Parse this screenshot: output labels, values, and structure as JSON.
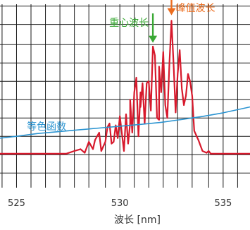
{
  "chart_data": {
    "type": "line",
    "title": "",
    "xlabel": "波长 [nm]",
    "ylabel": "",
    "xlim": [
      524.2,
      536.3
    ],
    "ylim": [
      0,
      1
    ],
    "grid": true,
    "x_gridlines": [
      524.3,
      525,
      525.7,
      526.4,
      527.1,
      527.8,
      528.5,
      529.3,
      530,
      530.7,
      531.4,
      532.1,
      532.8,
      533.5,
      534.3,
      535,
      535.7
    ],
    "y_gridlines": [
      0.08,
      0.18,
      0.28,
      0.38,
      0.48,
      0.58,
      0.68,
      0.78,
      0.89,
      0.99
    ],
    "x_ticks": [
      525,
      530,
      535
    ],
    "x_tick_labels": [
      "525",
      "530",
      "535"
    ],
    "series": [
      {
        "name": "",
        "color": "#d7192c",
        "points": [
          [
            524.2,
            0.185
          ],
          [
            527.4,
            0.185
          ],
          [
            527.8,
            0.2
          ],
          [
            528.1,
            0.21
          ],
          [
            528.3,
            0.19
          ],
          [
            528.5,
            0.25
          ],
          [
            528.7,
            0.21
          ],
          [
            528.8,
            0.26
          ],
          [
            529.0,
            0.3
          ],
          [
            529.1,
            0.2
          ],
          [
            529.3,
            0.25
          ],
          [
            529.4,
            0.33
          ],
          [
            529.5,
            0.35
          ],
          [
            529.6,
            0.24
          ],
          [
            529.7,
            0.25
          ],
          [
            529.8,
            0.34
          ],
          [
            529.9,
            0.27
          ],
          [
            530.0,
            0.39
          ],
          [
            530.2,
            0.2
          ],
          [
            530.3,
            0.4
          ],
          [
            530.4,
            0.24
          ],
          [
            530.5,
            0.35
          ],
          [
            530.5,
            0.48
          ],
          [
            530.6,
            0.3
          ],
          [
            530.7,
            0.52
          ],
          [
            530.8,
            0.6
          ],
          [
            530.9,
            0.28
          ],
          [
            531.0,
            0.52
          ],
          [
            531.0,
            0.44
          ],
          [
            531.1,
            0.57
          ],
          [
            531.2,
            0.35
          ],
          [
            531.3,
            0.57
          ],
          [
            531.4,
            0.58
          ],
          [
            531.5,
            0.42
          ],
          [
            531.6,
            0.77
          ],
          [
            531.7,
            0.72
          ],
          [
            531.8,
            0.38
          ],
          [
            531.9,
            0.37
          ],
          [
            531.9,
            0.66
          ],
          [
            532.0,
            0.52
          ],
          [
            532.1,
            0.74
          ],
          [
            532.2,
            0.45
          ],
          [
            532.3,
            0.38
          ],
          [
            532.4,
            0.68
          ],
          [
            532.5,
            0.91
          ],
          [
            532.6,
            0.68
          ],
          [
            532.7,
            0.41
          ],
          [
            532.8,
            0.62
          ],
          [
            532.9,
            0.75
          ],
          [
            533.0,
            0.54
          ],
          [
            533.1,
            0.45
          ],
          [
            533.2,
            0.5
          ],
          [
            533.3,
            0.62
          ],
          [
            533.4,
            0.58
          ],
          [
            533.5,
            0.5
          ],
          [
            533.6,
            0.31
          ],
          [
            533.8,
            0.26
          ],
          [
            534.0,
            0.2
          ],
          [
            534.2,
            0.19
          ],
          [
            534.3,
            0.2
          ],
          [
            534.4,
            0.185
          ],
          [
            536.3,
            0.185
          ]
        ]
      },
      {
        "name": "等色函数",
        "color": "#2b94d1",
        "points": [
          [
            524.2,
            0.27
          ],
          [
            525.0,
            0.28
          ],
          [
            526.0,
            0.295
          ],
          [
            527.0,
            0.305
          ],
          [
            528.0,
            0.315
          ],
          [
            529.0,
            0.325
          ],
          [
            530.0,
            0.335
          ],
          [
            531.0,
            0.345
          ],
          [
            532.0,
            0.356
          ],
          [
            533.0,
            0.372
          ],
          [
            534.0,
            0.388
          ],
          [
            535.0,
            0.408
          ],
          [
            536.3,
            0.44
          ]
        ]
      }
    ],
    "annotations": [
      {
        "text": "重心波长",
        "x": 531.6,
        "color": "#3aa935",
        "arrow_tip_y": 0.79,
        "arrow_tail_y": 0.95,
        "text_y": 0.9
      },
      {
        "text": "峰值波长",
        "x": 532.5,
        "color": "#ec6d1f",
        "arrow_tip_y": 0.94,
        "arrow_tail_y": 1.03,
        "text_y": 0.98
      },
      {
        "text": "等色函数",
        "x": 525.5,
        "y": 0.315,
        "color": "#2b94d1"
      }
    ]
  }
}
